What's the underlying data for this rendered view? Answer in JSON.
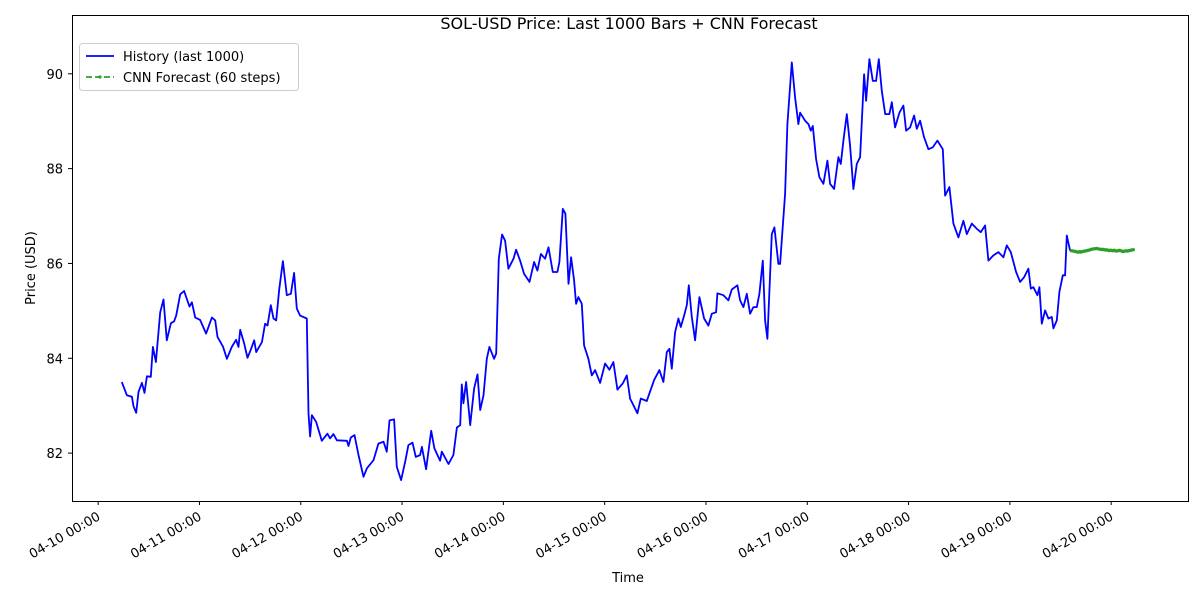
{
  "chart_data": {
    "type": "line",
    "title": "SOL-USD Price: Last 1000 Bars + CNN Forecast",
    "xlabel": "Time",
    "ylabel": "Price (USD)",
    "x_unit": "hours since 04-10 00:00",
    "xlim": [
      -6.2,
      258.2
    ],
    "ylim": [
      80.99,
      91.24
    ],
    "grid": false,
    "legend_position": "top-left",
    "x_ticks": [
      {
        "value": 0,
        "label": "04-10 00:00"
      },
      {
        "value": 24,
        "label": "04-11 00:00"
      },
      {
        "value": 48,
        "label": "04-12 00:00"
      },
      {
        "value": 72,
        "label": "04-13 00:00"
      },
      {
        "value": 96,
        "label": "04-14 00:00"
      },
      {
        "value": 120,
        "label": "04-15 00:00"
      },
      {
        "value": 144,
        "label": "04-16 00:00"
      },
      {
        "value": 168,
        "label": "04-17 00:00"
      },
      {
        "value": 192,
        "label": "04-18 00:00"
      },
      {
        "value": 216,
        "label": "04-19 00:00"
      },
      {
        "value": 240,
        "label": "04-20 00:00"
      }
    ],
    "y_ticks": [
      {
        "value": 82,
        "label": "82"
      },
      {
        "value": 84,
        "label": "84"
      },
      {
        "value": 86,
        "label": "86"
      },
      {
        "value": 88,
        "label": "88"
      },
      {
        "value": 90,
        "label": "90"
      }
    ],
    "series": [
      {
        "name": "History (last 1000)",
        "color": "#0000ff",
        "style": "solid",
        "points": [
          [
            5.61,
            83.5
          ],
          [
            6.8,
            83.22
          ],
          [
            7.98,
            83.19
          ],
          [
            8.36,
            82.99
          ],
          [
            9.0,
            82.85
          ],
          [
            9.55,
            83.29
          ],
          [
            10.35,
            83.48
          ],
          [
            10.97,
            83.27
          ],
          [
            11.54,
            83.62
          ],
          [
            12.48,
            83.61
          ],
          [
            12.96,
            84.24
          ],
          [
            13.67,
            83.92
          ],
          [
            14.69,
            84.97
          ],
          [
            15.47,
            85.24
          ],
          [
            16.27,
            84.38
          ],
          [
            17.22,
            84.74
          ],
          [
            18.0,
            84.78
          ],
          [
            18.48,
            84.9
          ],
          [
            19.43,
            85.35
          ],
          [
            20.37,
            85.42
          ],
          [
            21.63,
            85.09
          ],
          [
            22.2,
            85.18
          ],
          [
            22.98,
            84.86
          ],
          [
            24.16,
            84.81
          ],
          [
            25.58,
            84.52
          ],
          [
            26.94,
            84.86
          ],
          [
            27.72,
            84.8
          ],
          [
            28.26,
            84.45
          ],
          [
            29.54,
            84.25
          ],
          [
            30.49,
            83.99
          ],
          [
            31.67,
            84.24
          ],
          [
            32.69,
            84.39
          ],
          [
            33.24,
            84.24
          ],
          [
            33.64,
            84.6
          ],
          [
            34.59,
            84.31
          ],
          [
            35.37,
            84.01
          ],
          [
            36.17,
            84.18
          ],
          [
            36.96,
            84.38
          ],
          [
            37.43,
            84.13
          ],
          [
            38.78,
            84.34
          ],
          [
            39.56,
            84.73
          ],
          [
            40.11,
            84.69
          ],
          [
            40.91,
            85.12
          ],
          [
            41.53,
            84.84
          ],
          [
            42.17,
            84.8
          ],
          [
            42.88,
            85.45
          ],
          [
            43.76,
            86.05
          ],
          [
            44.7,
            85.33
          ],
          [
            45.65,
            85.36
          ],
          [
            46.43,
            85.8
          ],
          [
            47.07,
            85.05
          ],
          [
            47.85,
            84.9
          ],
          [
            49.44,
            84.84
          ],
          [
            49.82,
            82.84
          ],
          [
            50.22,
            82.35
          ],
          [
            50.63,
            82.8
          ],
          [
            51.64,
            82.66
          ],
          [
            52.99,
            82.26
          ],
          [
            54.32,
            82.41
          ],
          [
            54.96,
            82.31
          ],
          [
            55.74,
            82.4
          ],
          [
            56.55,
            82.27
          ],
          [
            58.92,
            82.26
          ],
          [
            59.3,
            82.15
          ],
          [
            59.86,
            82.33
          ],
          [
            60.72,
            82.38
          ],
          [
            61.67,
            81.96
          ],
          [
            62.85,
            81.5
          ],
          [
            63.66,
            81.68
          ],
          [
            65.22,
            81.85
          ],
          [
            66.4,
            82.2
          ],
          [
            67.59,
            82.24
          ],
          [
            68.39,
            82.03
          ],
          [
            69.01,
            82.69
          ],
          [
            70.12,
            82.71
          ],
          [
            70.76,
            81.71
          ],
          [
            71.78,
            81.43
          ],
          [
            72.73,
            81.82
          ],
          [
            73.51,
            82.17
          ],
          [
            74.46,
            82.22
          ],
          [
            75.26,
            81.92
          ],
          [
            76.28,
            81.96
          ],
          [
            76.69,
            82.13
          ],
          [
            77.7,
            81.66
          ],
          [
            78.89,
            82.47
          ],
          [
            79.67,
            82.1
          ],
          [
            81.02,
            81.84
          ],
          [
            81.42,
            82.03
          ],
          [
            82.99,
            81.77
          ],
          [
            84.17,
            81.96
          ],
          [
            84.98,
            82.54
          ],
          [
            85.76,
            82.59
          ],
          [
            86.16,
            83.45
          ],
          [
            86.54,
            83.05
          ],
          [
            87.18,
            83.5
          ],
          [
            88.13,
            82.59
          ],
          [
            89.07,
            83.36
          ],
          [
            89.86,
            83.66
          ],
          [
            90.5,
            82.91
          ],
          [
            91.28,
            83.22
          ],
          [
            92.08,
            83.99
          ],
          [
            92.7,
            84.24
          ],
          [
            93.81,
            83.99
          ],
          [
            94.29,
            84.1
          ],
          [
            94.92,
            86.1
          ],
          [
            95.71,
            86.61
          ],
          [
            96.42,
            86.48
          ],
          [
            97.2,
            85.89
          ],
          [
            98.39,
            86.1
          ],
          [
            99.02,
            86.29
          ],
          [
            99.97,
            86.06
          ],
          [
            100.92,
            85.78
          ],
          [
            102.18,
            85.61
          ],
          [
            103.29,
            86.03
          ],
          [
            104.07,
            85.85
          ],
          [
            104.88,
            86.2
          ],
          [
            105.89,
            86.1
          ],
          [
            106.68,
            86.34
          ],
          [
            107.72,
            85.82
          ],
          [
            108.81,
            85.82
          ],
          [
            109.28,
            86.03
          ],
          [
            110.09,
            87.15
          ],
          [
            110.7,
            87.05
          ],
          [
            111.42,
            85.57
          ],
          [
            112.05,
            86.13
          ],
          [
            112.76,
            85.64
          ],
          [
            113.24,
            85.15
          ],
          [
            113.78,
            85.29
          ],
          [
            114.59,
            85.15
          ],
          [
            115.13,
            84.27
          ],
          [
            116.15,
            83.99
          ],
          [
            116.96,
            83.64
          ],
          [
            117.74,
            83.75
          ],
          [
            118.92,
            83.48
          ],
          [
            120.11,
            83.89
          ],
          [
            121.13,
            83.76
          ],
          [
            122.07,
            83.92
          ],
          [
            123.02,
            83.34
          ],
          [
            124.3,
            83.47
          ],
          [
            125.25,
            83.64
          ],
          [
            126.03,
            83.15
          ],
          [
            126.81,
            83.01
          ],
          [
            127.76,
            82.84
          ],
          [
            128.56,
            83.15
          ],
          [
            129.99,
            83.1
          ],
          [
            130.6,
            83.26
          ],
          [
            131.72,
            83.54
          ],
          [
            132.97,
            83.75
          ],
          [
            133.92,
            83.5
          ],
          [
            134.72,
            84.13
          ],
          [
            135.34,
            84.2
          ],
          [
            135.91,
            83.78
          ],
          [
            136.69,
            84.55
          ],
          [
            137.47,
            84.84
          ],
          [
            138.04,
            84.66
          ],
          [
            138.82,
            84.9
          ],
          [
            139.46,
            85.12
          ],
          [
            139.94,
            85.54
          ],
          [
            140.65,
            84.87
          ],
          [
            141.43,
            84.38
          ],
          [
            142.45,
            85.29
          ],
          [
            143.56,
            84.84
          ],
          [
            144.58,
            84.69
          ],
          [
            145.39,
            84.94
          ],
          [
            146.41,
            84.97
          ],
          [
            146.71,
            85.37
          ],
          [
            148.13,
            85.33
          ],
          [
            149.32,
            85.22
          ],
          [
            150.12,
            85.45
          ],
          [
            151.45,
            85.54
          ],
          [
            152.09,
            85.22
          ],
          [
            152.87,
            85.08
          ],
          [
            153.68,
            85.36
          ],
          [
            154.46,
            84.94
          ],
          [
            155.24,
            85.08
          ],
          [
            156.05,
            85.08
          ],
          [
            156.66,
            85.36
          ],
          [
            157.47,
            86.06
          ],
          [
            158.01,
            84.8
          ],
          [
            158.56,
            84.41
          ],
          [
            159.6,
            86.62
          ],
          [
            160.22,
            86.76
          ],
          [
            161.16,
            85.99
          ],
          [
            161.57,
            85.99
          ],
          [
            162.75,
            87.47
          ],
          [
            163.3,
            88.94
          ],
          [
            164.33,
            90.24
          ],
          [
            165.12,
            89.5
          ],
          [
            165.9,
            88.94
          ],
          [
            166.3,
            89.18
          ],
          [
            167.49,
            89.01
          ],
          [
            168.27,
            88.94
          ],
          [
            168.84,
            88.8
          ],
          [
            169.31,
            88.9
          ],
          [
            170.1,
            88.2
          ],
          [
            170.88,
            87.82
          ],
          [
            171.83,
            87.68
          ],
          [
            172.77,
            88.17
          ],
          [
            173.41,
            87.68
          ],
          [
            174.36,
            87.57
          ],
          [
            175.38,
            88.24
          ],
          [
            175.95,
            88.1
          ],
          [
            176.56,
            88.59
          ],
          [
            177.37,
            89.15
          ],
          [
            178.15,
            88.48
          ],
          [
            178.93,
            87.57
          ],
          [
            179.74,
            88.1
          ],
          [
            180.52,
            88.24
          ],
          [
            181.47,
            89.99
          ],
          [
            181.94,
            89.43
          ],
          [
            182.72,
            90.31
          ],
          [
            183.53,
            89.85
          ],
          [
            184.31,
            89.85
          ],
          [
            184.95,
            90.31
          ],
          [
            185.66,
            89.64
          ],
          [
            186.45,
            89.15
          ],
          [
            187.46,
            89.15
          ],
          [
            188.03,
            89.4
          ],
          [
            188.81,
            88.87
          ],
          [
            189.83,
            89.18
          ],
          [
            190.78,
            89.33
          ],
          [
            191.42,
            88.8
          ],
          [
            192.36,
            88.87
          ],
          [
            193.31,
            89.12
          ],
          [
            193.95,
            88.84
          ],
          [
            194.73,
            89.01
          ],
          [
            195.68,
            88.66
          ],
          [
            196.7,
            88.41
          ],
          [
            197.74,
            88.45
          ],
          [
            198.83,
            88.59
          ],
          [
            200.11,
            88.41
          ],
          [
            200.65,
            87.43
          ],
          [
            201.67,
            87.61
          ],
          [
            202.62,
            86.84
          ],
          [
            203.8,
            86.55
          ],
          [
            204.99,
            86.9
          ],
          [
            205.79,
            86.62
          ],
          [
            206.98,
            86.84
          ],
          [
            208.16,
            86.73
          ],
          [
            209.11,
            86.66
          ],
          [
            210.13,
            86.8
          ],
          [
            210.91,
            86.06
          ],
          [
            212.1,
            86.17
          ],
          [
            213.28,
            86.24
          ],
          [
            214.47,
            86.13
          ],
          [
            215.27,
            86.38
          ],
          [
            216.22,
            86.24
          ],
          [
            217.47,
            85.82
          ],
          [
            218.42,
            85.61
          ],
          [
            219.37,
            85.71
          ],
          [
            220.39,
            85.89
          ],
          [
            220.96,
            85.47
          ],
          [
            221.57,
            85.5
          ],
          [
            222.52,
            85.33
          ],
          [
            223.0,
            85.5
          ],
          [
            223.57,
            84.73
          ],
          [
            224.35,
            85.01
          ],
          [
            225.13,
            84.84
          ],
          [
            225.93,
            84.87
          ],
          [
            226.31,
            84.63
          ],
          [
            227.12,
            84.8
          ],
          [
            227.73,
            85.4
          ],
          [
            228.54,
            85.75
          ],
          [
            229.08,
            85.75
          ],
          [
            229.49,
            86.59
          ],
          [
            230.27,
            86.27
          ]
        ]
      },
      {
        "name": "CNN Forecast (60 steps)",
        "color": "#2ca02c",
        "style": "dashed-dot-markers",
        "start_hour": 230.52,
        "step_hours": 0.25,
        "values": [
          86.27,
          86.27,
          86.26,
          86.26,
          86.25,
          86.25,
          86.24,
          86.24,
          86.25,
          86.24,
          86.25,
          86.25,
          86.26,
          86.26,
          86.27,
          86.27,
          86.28,
          86.28,
          86.29,
          86.3,
          86.3,
          86.31,
          86.31,
          86.31,
          86.32,
          86.31,
          86.31,
          86.3,
          86.3,
          86.29,
          86.3,
          86.29,
          86.29,
          86.28,
          86.29,
          86.28,
          86.27,
          86.28,
          86.28,
          86.27,
          86.27,
          86.28,
          86.27,
          86.26,
          86.27,
          86.27,
          86.28,
          86.27,
          86.26,
          86.25,
          86.26,
          86.26,
          86.27,
          86.26,
          86.27,
          86.27,
          86.28,
          86.28,
          86.29,
          86.29
        ]
      }
    ]
  }
}
